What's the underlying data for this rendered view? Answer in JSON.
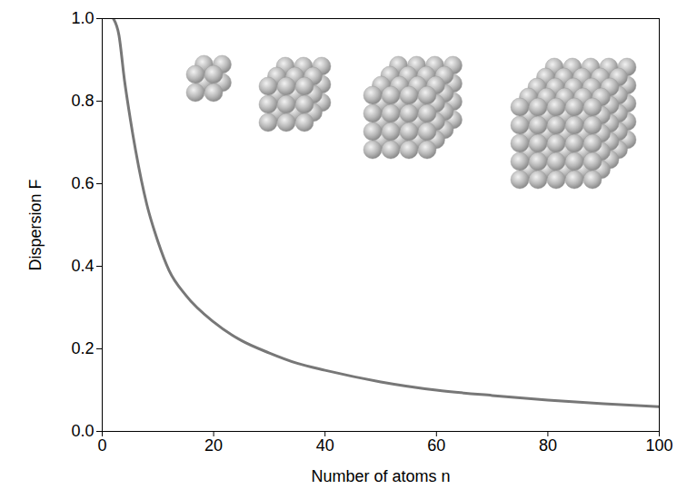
{
  "chart_data": {
    "type": "line",
    "x_label": "Number of atoms n",
    "y_label": "Dispersion F",
    "x": [
      2,
      3,
      4,
      5,
      6,
      8,
      10,
      12,
      15,
      20,
      25,
      30,
      35,
      40,
      50,
      60,
      70,
      80,
      90,
      100
    ],
    "series": [
      {
        "color": "#777777",
        "values": [
          1.0,
          0.96,
          0.85,
          0.76,
          0.68,
          0.55,
          0.46,
          0.39,
          0.33,
          0.265,
          0.22,
          0.19,
          0.165,
          0.148,
          0.12,
          0.1,
          0.087,
          0.076,
          0.067,
          0.06
        ]
      }
    ],
    "xlim": [
      0,
      100
    ],
    "xticks": [
      0,
      20,
      40,
      60,
      80,
      100
    ],
    "ylim": [
      0,
      1.0
    ],
    "yticks": [
      {
        "value": 0,
        "label": "0.0"
      },
      {
        "value": 0.2,
        "label": "0.2"
      },
      {
        "value": 0.4,
        "label": "0.4"
      },
      {
        "value": 0.6,
        "label": "0.6"
      },
      {
        "value": 0.8,
        "label": "0.8"
      },
      {
        "value": 1.0,
        "label": "1.0"
      }
    ],
    "grid": false
  }
}
